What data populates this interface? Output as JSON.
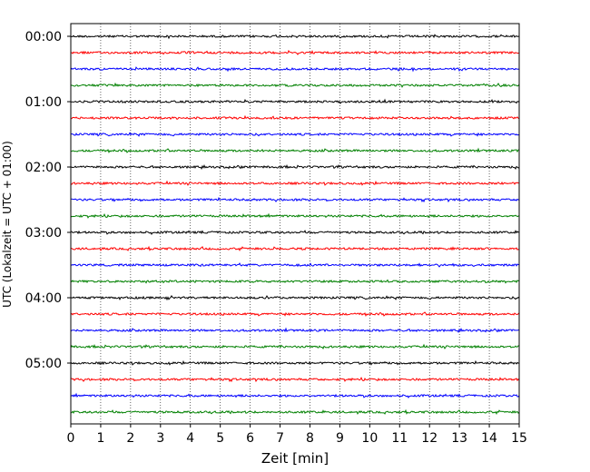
{
  "chart_data": {
    "type": "line",
    "title": "",
    "xlabel": "Zeit  [min]",
    "ylabel": "UTC (Lokalzeit = UTC + 01:00)",
    "xlim": [
      0,
      15
    ],
    "x_ticks": [
      "0",
      "1",
      "2",
      "3",
      "4",
      "5",
      "6",
      "7",
      "8",
      "9",
      "10",
      "11",
      "12",
      "13",
      "14",
      "15"
    ],
    "y_ticks": [
      "00:00",
      "01:00",
      "02:00",
      "03:00",
      "04:00",
      "05:00"
    ],
    "grid": "vertical dotted at each minute",
    "trace_interval_minutes": 15,
    "trace_color_cycle": [
      "#000000",
      "#ff0000",
      "#0000ff",
      "#008000"
    ],
    "series": [
      {
        "start": "00:00",
        "color": "#000000"
      },
      {
        "start": "00:15",
        "color": "#ff0000"
      },
      {
        "start": "00:30",
        "color": "#0000ff"
      },
      {
        "start": "00:45",
        "color": "#008000"
      },
      {
        "start": "01:00",
        "color": "#000000"
      },
      {
        "start": "01:15",
        "color": "#ff0000"
      },
      {
        "start": "01:30",
        "color": "#0000ff"
      },
      {
        "start": "01:45",
        "color": "#008000"
      },
      {
        "start": "02:00",
        "color": "#000000"
      },
      {
        "start": "02:15",
        "color": "#ff0000"
      },
      {
        "start": "02:30",
        "color": "#0000ff"
      },
      {
        "start": "02:45",
        "color": "#008000"
      },
      {
        "start": "03:00",
        "color": "#000000"
      },
      {
        "start": "03:15",
        "color": "#ff0000"
      },
      {
        "start": "03:30",
        "color": "#0000ff"
      },
      {
        "start": "03:45",
        "color": "#008000"
      },
      {
        "start": "04:00",
        "color": "#000000"
      },
      {
        "start": "04:15",
        "color": "#ff0000"
      },
      {
        "start": "04:30",
        "color": "#0000ff"
      },
      {
        "start": "04:45",
        "color": "#008000"
      },
      {
        "start": "05:00",
        "color": "#000000"
      },
      {
        "start": "05:15",
        "color": "#ff0000"
      },
      {
        "start": "05:30",
        "color": "#0000ff"
      },
      {
        "start": "05:45",
        "color": "#008000"
      }
    ]
  }
}
